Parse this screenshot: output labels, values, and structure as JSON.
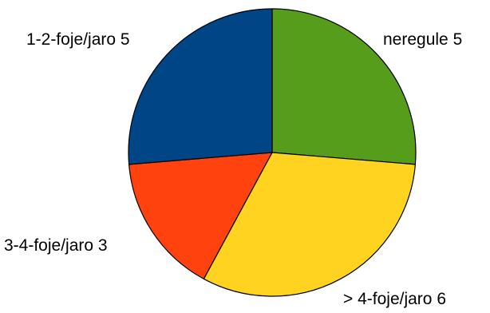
{
  "chart_data": {
    "type": "pie",
    "slices": [
      {
        "name": "neregule",
        "value": 5,
        "color": "#579D1C",
        "label": "neregule 5"
      },
      {
        "name": "> 4-foje/jaro",
        "value": 6,
        "color": "#FFD320",
        "label": "> 4-foje/jaro 6"
      },
      {
        "name": "3-4-foje/jaro",
        "value": 3,
        "color": "#FF420E",
        "label": "3-4-foje/jaro 3"
      },
      {
        "name": "1-2-foje/jaro",
        "value": 5,
        "color": "#004586",
        "label": "1-2-foje/jaro 5"
      }
    ],
    "start_angle": "12 o'clock",
    "direction": "clockwise",
    "legend": "none"
  }
}
